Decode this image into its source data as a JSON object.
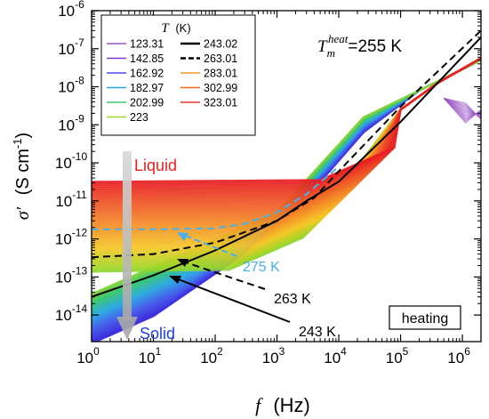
{
  "chart_data": {
    "type": "line",
    "x_axis": {
      "label_symbol": "f",
      "label_unit": "(Hz)",
      "scale": "log",
      "range": [
        1,
        2000000
      ],
      "ticks": [
        {
          "base": "10",
          "exp": "0"
        },
        {
          "base": "10",
          "exp": "1"
        },
        {
          "base": "10",
          "exp": "2"
        },
        {
          "base": "10",
          "exp": "3"
        },
        {
          "base": "10",
          "exp": "4"
        },
        {
          "base": "10",
          "exp": "5"
        },
        {
          "base": "10",
          "exp": "6"
        }
      ]
    },
    "y_axis": {
      "label_symbol": "σ′",
      "label_unit_pre": "(S cm",
      "label_unit_exp": "-1",
      "label_unit_post": ")",
      "scale": "log",
      "range": [
        2e-15,
        1e-06
      ],
      "ticks": [
        {
          "base": "10",
          "exp": "-6"
        },
        {
          "base": "10",
          "exp": "-7"
        },
        {
          "base": "10",
          "exp": "-8"
        },
        {
          "base": "10",
          "exp": "-9"
        },
        {
          "base": "10",
          "exp": "-10"
        },
        {
          "base": "10",
          "exp": "-11"
        },
        {
          "base": "10",
          "exp": "-12"
        },
        {
          "base": "10",
          "exp": "-13"
        },
        {
          "base": "10",
          "exp": "-14"
        }
      ]
    },
    "legend": {
      "title_symbol": "T",
      "title_unit": "(K)",
      "placement": "top-left",
      "entries": [
        {
          "label": "123.31",
          "color": "#9b59c6",
          "style": "thin"
        },
        {
          "label": "142.85",
          "color": "#7b3fd6",
          "style": "thin"
        },
        {
          "label": "162.92",
          "color": "#4a4fe6",
          "style": "thin"
        },
        {
          "label": "182.97",
          "color": "#2fa0e0",
          "style": "thin"
        },
        {
          "label": "202.99",
          "color": "#3ec96b",
          "style": "thin"
        },
        {
          "label": "223",
          "color": "#9bdd2a",
          "style": "thin"
        },
        {
          "label": "243.02",
          "color": "#000000",
          "style": "solid"
        },
        {
          "label": "263.01",
          "color": "#000000",
          "style": "dashed"
        },
        {
          "label": "283.01",
          "color": "#f39c2a",
          "style": "thin"
        },
        {
          "label": "302.99",
          "color": "#ef6a2a",
          "style": "thin"
        },
        {
          "label": "323.01",
          "color": "#e8332a",
          "style": "thin"
        }
      ]
    },
    "series": [
      {
        "name": "243.02",
        "style": "solid",
        "color": "#000000",
        "x": [
          1,
          10,
          100,
          1000,
          3000,
          10000,
          100000,
          2000000
        ],
        "y": [
          3e-14,
          1.1e-13,
          5e-13,
          3e-12,
          1e-11,
          3.2e-11,
          1.2e-09,
          2e-07
        ]
      },
      {
        "name": "263.01",
        "style": "dashed",
        "color": "#000000",
        "x": [
          1,
          10,
          100,
          1000,
          4000,
          10000,
          100000,
          2000000
        ],
        "y": [
          3.3e-13,
          4e-13,
          8e-13,
          3e-12,
          1.2e-11,
          6e-11,
          3e-09,
          3e-07
        ]
      },
      {
        "name": "275 K",
        "style": "dashed",
        "color": "#4ab0e8",
        "x": [
          1,
          10,
          100,
          300,
          1000,
          3000,
          10000
        ],
        "y": [
          1.8e-12,
          1.8e-12,
          1.9e-12,
          2.5e-12,
          5e-12,
          1.5e-11,
          8e-11
        ]
      }
    ],
    "annotations": [
      {
        "text": "Liquid",
        "color": "#e8201e"
      },
      {
        "text": "Solid",
        "color": "#1f3fe0"
      },
      {
        "text": "275 K",
        "color": "#4ab0e8"
      },
      {
        "text": "263 K",
        "color": "#000000"
      },
      {
        "text": "243 K",
        "color": "#000000"
      },
      {
        "text": "heating",
        "color": "#000000",
        "boxed": true
      }
    ],
    "tm_label": {
      "symbol": "T",
      "sub": "m",
      "sup": "heat",
      "value": "=255 K"
    }
  }
}
